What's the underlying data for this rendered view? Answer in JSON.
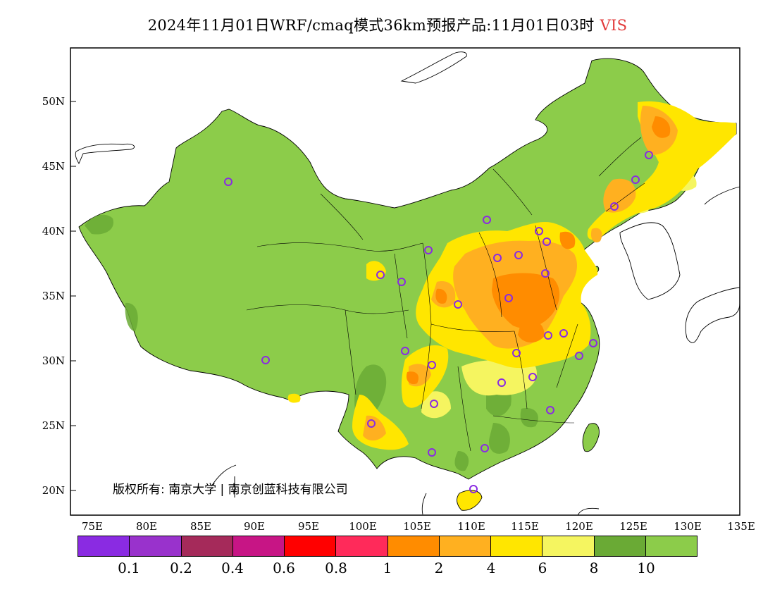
{
  "title": {
    "main": "2024年11月01日WRF/cmaq模式36km预报产品:11月01日03时",
    "variable": "VIS"
  },
  "lat_labels": [
    "50N",
    "45N",
    "40N",
    "35N",
    "30N",
    "25N",
    "20N"
  ],
  "lon_labels": [
    "75E",
    "80E",
    "85E",
    "90E",
    "95E",
    "100E",
    "105E",
    "110E",
    "115E",
    "120E",
    "125E",
    "130E",
    "135E"
  ],
  "copyright": "版权所有: 南京大学 | 南京创蓝科技有限公司",
  "legend": {
    "colors": [
      "#8a2be2",
      "#9932cc",
      "#a52a5a",
      "#c71585",
      "#ff0000",
      "#ff2a5a",
      "#ff8c00",
      "#ffb020",
      "#ffe600",
      "#f5f560",
      "#6aaa35",
      "#8ccc4a"
    ],
    "labels": [
      "0.1",
      "0.2",
      "0.4",
      "0.6",
      "0.8",
      "1",
      "2",
      "4",
      "6",
      "8",
      "10"
    ]
  },
  "map": {
    "ocean_color": "#ffffff",
    "base_visibility_color": "#8ccc4a",
    "station_marker_color": "#8a2be2"
  }
}
